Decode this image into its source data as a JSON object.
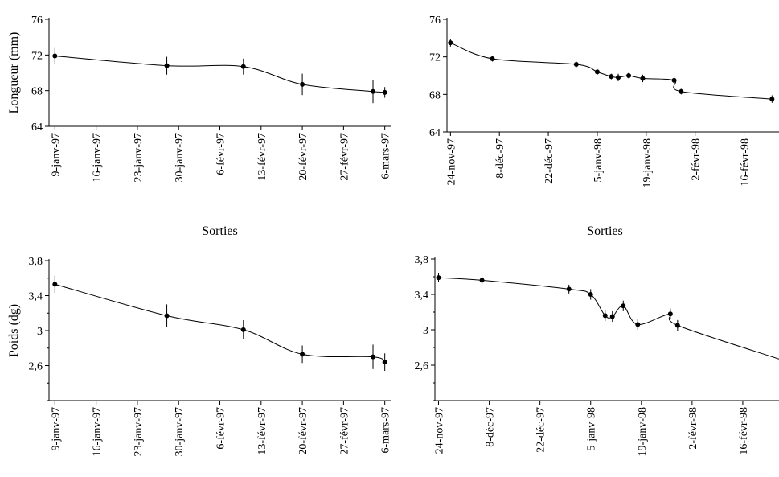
{
  "chart_data": [
    {
      "type": "line",
      "title": "",
      "ylabel": "Longueur (mm)",
      "xlabel": "Sorties",
      "ylim": [
        64,
        76
      ],
      "yticks": [
        "64",
        "68",
        "72",
        "76"
      ],
      "xlim": [
        "1997-01-08",
        "1997-03-07"
      ],
      "x_tick_labels": [
        "9-janv-97",
        "16-janv-97",
        "23-janv-97",
        "30-janv-97",
        "6-févr-97",
        "13-févr-97",
        "20-févr-97",
        "27-févr-97",
        "6-mars-97"
      ],
      "x_tick_dates": [
        "1997-01-09",
        "1997-01-16",
        "1997-01-23",
        "1997-01-30",
        "1997-02-06",
        "1997-02-13",
        "1997-02-20",
        "1997-02-27",
        "1997-03-06"
      ],
      "series": [
        {
          "x": [
            "1997-01-09",
            "1997-01-28",
            "1997-02-10",
            "1997-02-20",
            "1997-03-04",
            "1997-03-06"
          ],
          "y": [
            71.9,
            70.8,
            70.7,
            68.7,
            67.9,
            67.8
          ],
          "error": [
            0.9,
            1.0,
            0.9,
            1.2,
            1.3,
            0.6
          ]
        }
      ]
    },
    {
      "type": "line",
      "title": "",
      "ylabel": "",
      "xlabel": "Sorties",
      "ylim": [
        64,
        76
      ],
      "yticks": [
        "64",
        "68",
        "72",
        "76"
      ],
      "xlim": [
        "1997-11-23",
        "1998-02-26"
      ],
      "x_tick_labels": [
        "24-nov-97",
        "8-déc-97",
        "22-déc-97",
        "5-janv-98",
        "19-janv-98",
        "2-févr-98",
        "16-févr-98"
      ],
      "x_tick_dates": [
        "1997-11-24",
        "1997-12-08",
        "1997-12-22",
        "1998-01-05",
        "1998-01-19",
        "1998-02-02",
        "1998-02-16"
      ],
      "series": [
        {
          "x": [
            "1997-11-24",
            "1997-12-06",
            "1997-12-30",
            "1998-01-05",
            "1998-01-09",
            "1998-01-11",
            "1998-01-14",
            "1998-01-18",
            "1998-01-27",
            "1998-01-29",
            "1998-02-24"
          ],
          "y": [
            73.5,
            71.8,
            71.2,
            70.4,
            69.9,
            69.8,
            70.0,
            69.7,
            69.5,
            68.3,
            67.5
          ],
          "error": [
            0.4,
            0.3,
            0.3,
            0.3,
            0.3,
            0.4,
            0.3,
            0.4,
            0.4,
            0.3,
            0.4
          ]
        }
      ]
    },
    {
      "type": "line",
      "title": "",
      "ylabel": "Poids (dg)",
      "xlabel": "",
      "ylim": [
        2.2,
        3.8
      ],
      "yticks": [
        "2,6",
        "3",
        "3,4",
        "3,8"
      ],
      "xlim": [
        "1997-01-08",
        "1997-03-07"
      ],
      "x_tick_labels": [
        "9-janv-97",
        "16-janv-97",
        "23-janv-97",
        "30-janv-97",
        "6-févr-97",
        "13-févr-97",
        "20-févr-97",
        "27-févr-97",
        "6-mars-97"
      ],
      "x_tick_dates": [
        "1997-01-09",
        "1997-01-16",
        "1997-01-23",
        "1997-01-30",
        "1997-02-06",
        "1997-02-13",
        "1997-02-20",
        "1997-02-27",
        "1997-03-06"
      ],
      "series": [
        {
          "x": [
            "1997-01-09",
            "1997-01-28",
            "1997-02-10",
            "1997-02-20",
            "1997-03-04",
            "1997-03-06"
          ],
          "y": [
            3.53,
            3.17,
            3.01,
            2.73,
            2.7,
            2.64
          ],
          "error": [
            0.1,
            0.13,
            0.11,
            0.1,
            0.14,
            0.1
          ]
        }
      ]
    },
    {
      "type": "line",
      "title": "",
      "ylabel": "",
      "xlabel": "",
      "ylim": [
        2.2,
        3.8
      ],
      "yticks": [
        "2,6",
        "3",
        "3,4",
        "3,8"
      ],
      "xlim": [
        "1997-11-23",
        "1998-02-26"
      ],
      "x_tick_labels": [
        "24-nov-97",
        "8-déc-97",
        "22-déc-97",
        "5-janv-98",
        "19-janv-98",
        "2-févr-98",
        "16-févr-98"
      ],
      "x_tick_dates": [
        "1997-11-24",
        "1997-12-08",
        "1997-12-22",
        "1998-01-05",
        "1998-01-19",
        "1998-02-02",
        "1998-02-16"
      ],
      "series": [
        {
          "x": [
            "1997-11-24",
            "1997-12-06",
            "1997-12-30",
            "1998-01-05",
            "1998-01-09",
            "1998-01-11",
            "1998-01-14",
            "1998-01-18",
            "1998-01-27",
            "1998-01-29",
            "1998-02-26"
          ],
          "y": [
            3.59,
            3.56,
            3.46,
            3.4,
            3.16,
            3.15,
            3.27,
            3.06,
            3.18,
            3.05,
            2.67
          ],
          "error": [
            0.05,
            0.05,
            0.05,
            0.06,
            0.06,
            0.06,
            0.06,
            0.06,
            0.06,
            0.06,
            0
          ],
          "marker_count": 10
        }
      ]
    }
  ]
}
